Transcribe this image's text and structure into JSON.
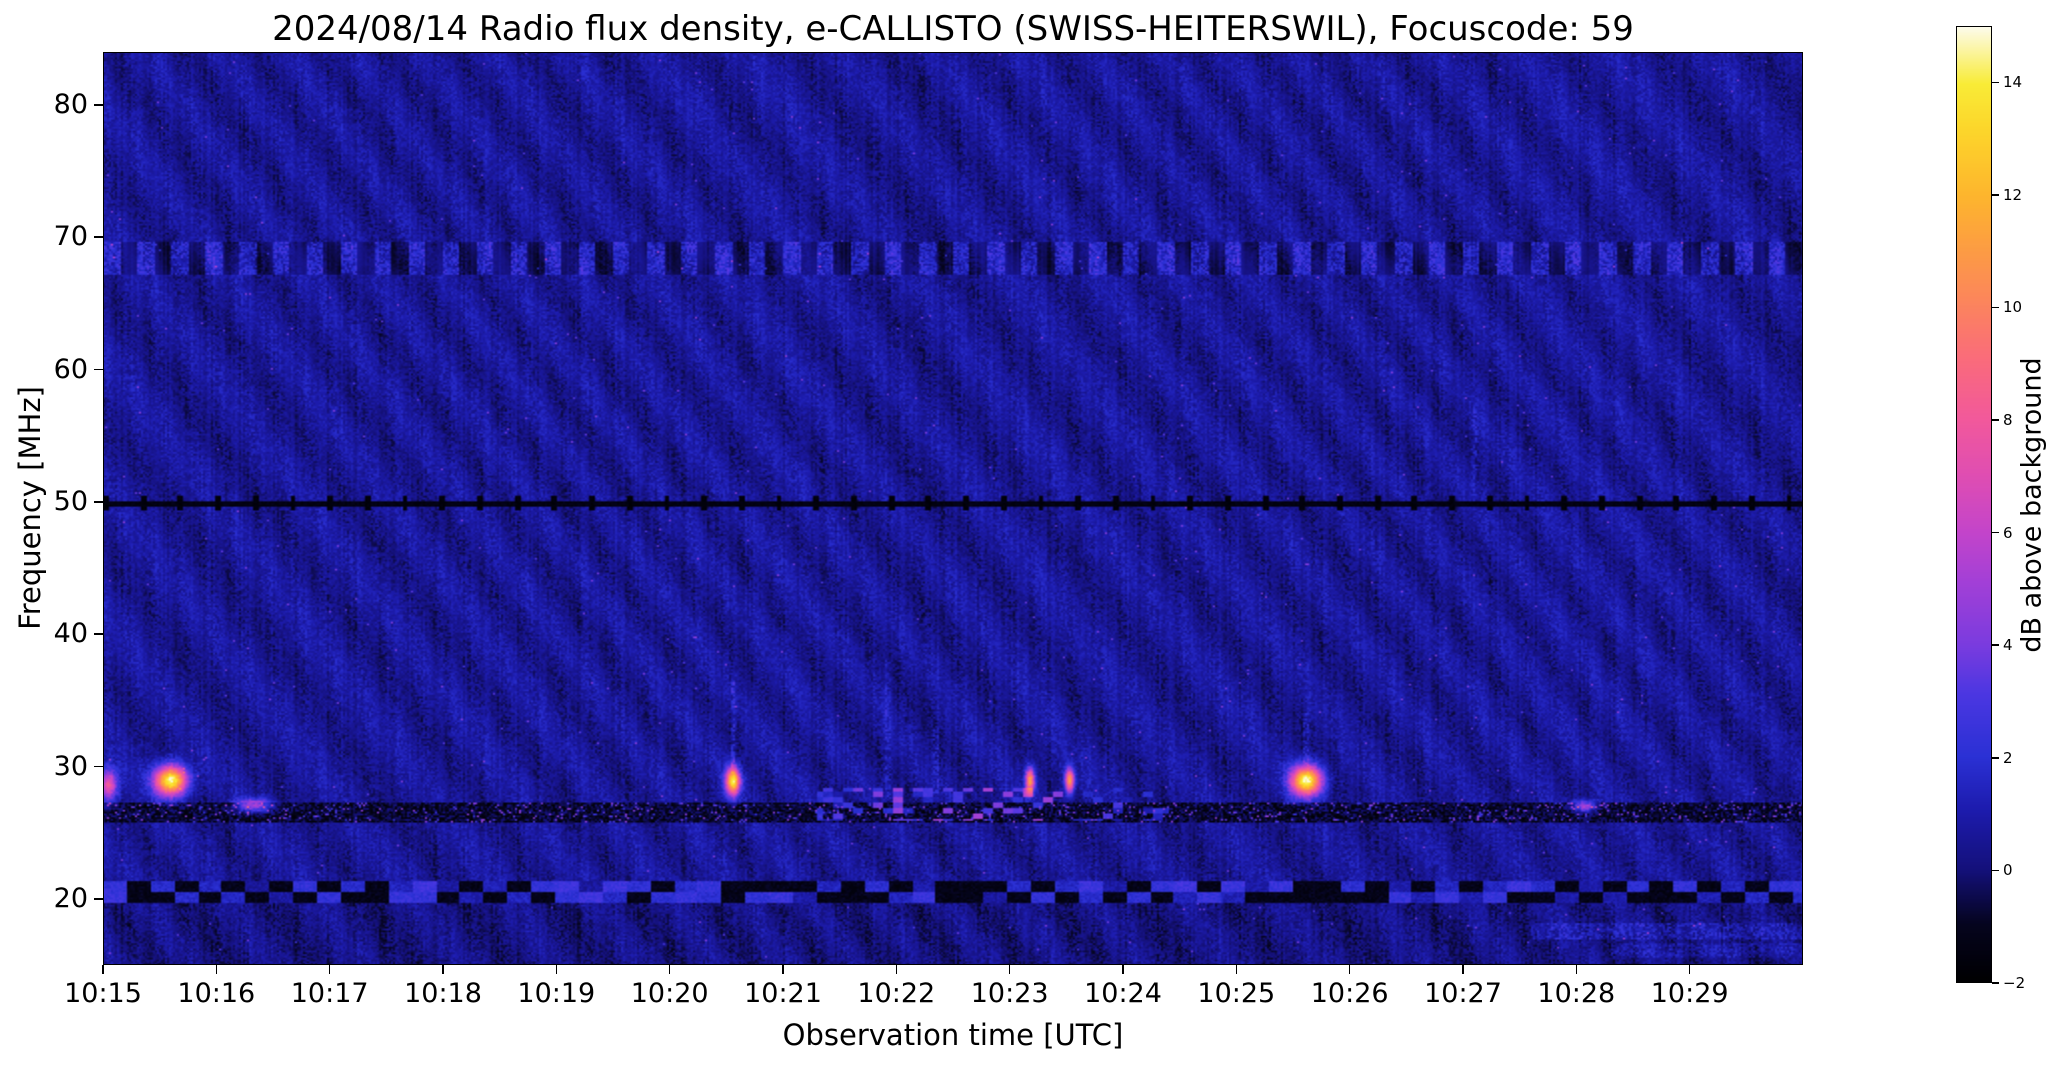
{
  "chart_data": {
    "type": "heatmap",
    "title": "2024/08/14  Radio flux density, e-CALLISTO (SWISS-HEITERSWIL), Focuscode: 59",
    "xlabel": "Observation time [UTC]",
    "ylabel": "Frequency [MHz]",
    "colorbar_label": "dB above background",
    "x_tick_labels": [
      "10:15",
      "10:16",
      "10:17",
      "10:18",
      "10:19",
      "10:20",
      "10:21",
      "10:22",
      "10:23",
      "10:24",
      "10:25",
      "10:26",
      "10:27",
      "10:28",
      "10:29"
    ],
    "x_tick_minutes": [
      0,
      1,
      2,
      3,
      4,
      5,
      6,
      7,
      8,
      9,
      10,
      11,
      12,
      13,
      14
    ],
    "x_span_minutes": 15,
    "y_tick_values": [
      20,
      30,
      40,
      50,
      60,
      70,
      80
    ],
    "freq_range_mhz": [
      15,
      84
    ],
    "value_range_db": [
      -2,
      15
    ],
    "colorbar_tick_values": [
      -2,
      0,
      2,
      4,
      6,
      8,
      10,
      12,
      14
    ],
    "colormap_stops": [
      [
        0.0,
        "#000002"
      ],
      [
        0.06,
        "#06051f"
      ],
      [
        0.118,
        "#15117c"
      ],
      [
        0.18,
        "#1d1cae"
      ],
      [
        0.235,
        "#2b31d5"
      ],
      [
        0.3,
        "#4b37e2"
      ],
      [
        0.353,
        "#7b3cdf"
      ],
      [
        0.42,
        "#a440d7"
      ],
      [
        0.471,
        "#c445cb"
      ],
      [
        0.53,
        "#e04eb3"
      ],
      [
        0.588,
        "#f2599d"
      ],
      [
        0.65,
        "#fa6b7d"
      ],
      [
        0.706,
        "#fc8360"
      ],
      [
        0.77,
        "#fd9e43"
      ],
      [
        0.824,
        "#feb62e"
      ],
      [
        0.89,
        "#fdd52b"
      ],
      [
        0.941,
        "#f9ec37"
      ],
      [
        1.0,
        "#fdfce9"
      ]
    ],
    "background": {
      "base_db": 0.55,
      "noise_db": 0.65,
      "ripple_db": 0.42,
      "column_noise_db": 0.3
    },
    "bands": [
      {
        "name": "interference-band-68mhz",
        "f_min": 67.2,
        "f_max": 69.6,
        "pattern": "dashes",
        "period_min": 0.3,
        "bright_db": 1.1,
        "dark_db": -0.75
      },
      {
        "name": "quiet-line-50mhz",
        "f_min": 49.6,
        "f_max": 50.12,
        "pattern": "dark-dashed",
        "period_min": 0.33,
        "dark_db": -1.7,
        "tick_f_min": 49.3,
        "tick_f_max": 50.45
      },
      {
        "name": "noise-band-26mhz",
        "f_min": 25.8,
        "f_max": 27.35,
        "pattern": "speckle",
        "dark_db": -1.9,
        "spread_db": 2.2,
        "sparkle_db": 5.0
      },
      {
        "name": "checker-band-20mhz",
        "f_min": 19.65,
        "f_max": 21.35,
        "pattern": "checker",
        "period_min": 0.21,
        "cell_f": 0.85,
        "dark_db": -1.7,
        "bright_db": 1.2
      }
    ],
    "active_region": {
      "t_min": 6.3,
      "t_max": 9.4,
      "f_min": 25.9,
      "f_max": 28.4,
      "center_t": 7.7,
      "sigma_t": 1.15,
      "peak_db": 6.2
    },
    "events": [
      {
        "t": 0.05,
        "f": 28.6,
        "sigma_t": 0.055,
        "sigma_f": 0.85,
        "peak_db": 7.5
      },
      {
        "t": 0.6,
        "f": 28.95,
        "sigma_t": 0.1,
        "sigma_f": 0.8,
        "peak_db": 14.5
      },
      {
        "t": 1.33,
        "f": 27.05,
        "sigma_t": 0.11,
        "sigma_f": 0.35,
        "peak_db": 6.0
      },
      {
        "t": 5.56,
        "f": 28.9,
        "sigma_t": 0.045,
        "sigma_f": 0.75,
        "peak_db": 13.5
      },
      {
        "t": 8.18,
        "f": 28.95,
        "sigma_t": 0.028,
        "sigma_f": 0.65,
        "peak_db": 11.0
      },
      {
        "t": 8.53,
        "f": 28.95,
        "sigma_t": 0.028,
        "sigma_f": 0.65,
        "peak_db": 11.0
      },
      {
        "t": 10.62,
        "f": 28.95,
        "sigma_t": 0.095,
        "sigma_f": 0.8,
        "peak_db": 14.5
      },
      {
        "t": 13.07,
        "f": 27.0,
        "sigma_t": 0.07,
        "sigma_f": 0.3,
        "peak_db": 6.0
      }
    ],
    "streaks": [
      {
        "t": 5.56,
        "f_min": 29.5,
        "f_max": 36.5,
        "amp_db": 1.1
      },
      {
        "t": 6.92,
        "f_min": 27.5,
        "f_max": 38.0,
        "amp_db": 0.8
      },
      {
        "t": 7.35,
        "f_min": 28.0,
        "f_max": 33.0,
        "amp_db": 0.7
      },
      {
        "t": 10.62,
        "f_min": 30.0,
        "f_max": 34.0,
        "amp_db": 0.8
      },
      {
        "t": 12.1,
        "f_min": 50.5,
        "f_max": 57.0,
        "amp_db": 0.7
      }
    ],
    "bottom_wisps": [
      {
        "t_min": 12.6,
        "t_max": 15.0,
        "f_min": 17.0,
        "f_max": 18.2,
        "amp_db": 1.3
      },
      {
        "t_min": 13.3,
        "t_max": 15.0,
        "f_min": 15.6,
        "f_max": 16.6,
        "amp_db": 0.9
      }
    ]
  }
}
